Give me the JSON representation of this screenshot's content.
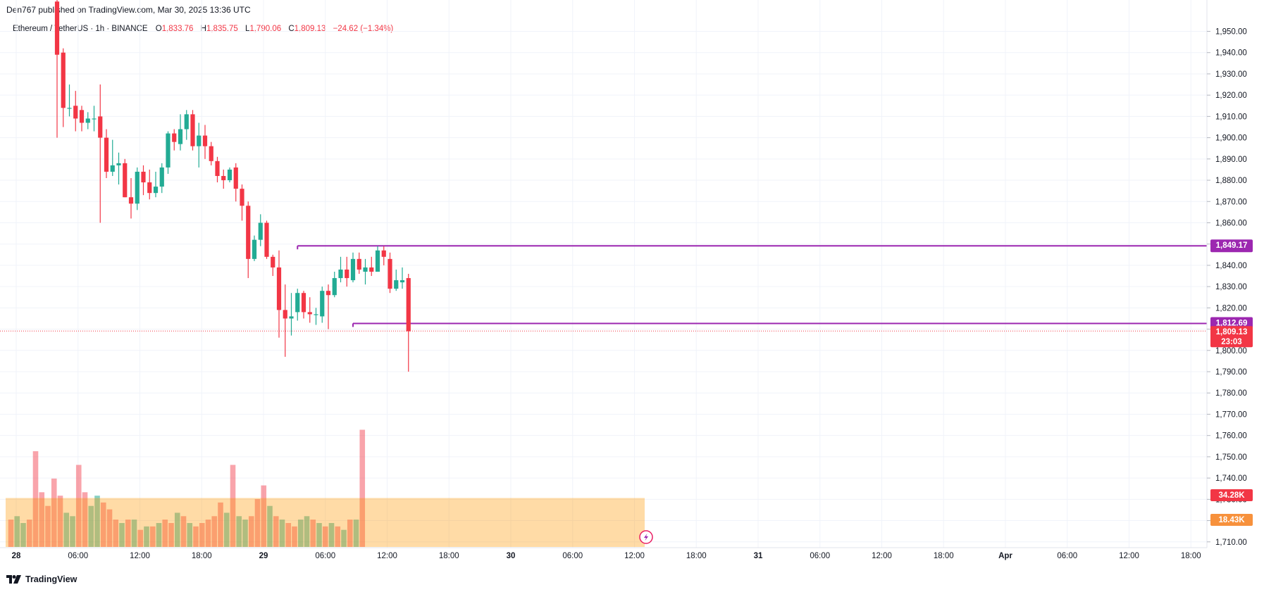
{
  "header": {
    "published": "Den767 published on TradingView.com, Mar 30, 2025 13:36 UTC"
  },
  "legend": {
    "symbol": "Ethereum / TetherUS · 1h · BINANCE",
    "open_label": "O",
    "open": "1,833.76",
    "high_label": "H",
    "high": "1,835.75",
    "low_label": "L",
    "low": "1,790.06",
    "close_label": "C",
    "close": "1,809.13",
    "change": "−24.62 (−1.34%)"
  },
  "footer": {
    "brand": "TradingView",
    "logo_icon": "tradingview-logo-icon"
  },
  "colors": {
    "up": "#22ab94",
    "down": "#f23645",
    "level": "#9c27b0",
    "volume_ma": "#ff9800"
  },
  "badges": {
    "level_high": "1,849.17",
    "level_low": "1,812.69",
    "last_price": "1,809.13",
    "countdown": "23:03",
    "volume": "34.28K",
    "volume_ma": "18.43K"
  },
  "chart_data": {
    "type": "candlestick",
    "symbol": "ETHUSDT",
    "interval": "1h",
    "ylim": [
      1705,
      1955
    ],
    "y_ticks": [
      "1,950.00",
      "1,940.00",
      "1,930.00",
      "1,920.00",
      "1,910.00",
      "1,900.00",
      "1,890.00",
      "1,880.00",
      "1,870.00",
      "1,860.00",
      "1,850.00",
      "1,840.00",
      "1,830.00",
      "1,820.00",
      "1,810.00",
      "1,800.00",
      "1,790.00",
      "1,780.00",
      "1,770.00",
      "1,760.00",
      "1,750.00",
      "1,740.00",
      "1,730.00",
      "1,720.00",
      "1,710.00"
    ],
    "x_ticks": [
      "28",
      "06:00",
      "12:00",
      "18:00",
      "29",
      "06:00",
      "12:00",
      "18:00",
      "30",
      "06:00",
      "12:00",
      "18:00",
      "31",
      "06:00",
      "12:00",
      "18:00",
      "Apr",
      "06:00",
      "12:00",
      "18:00"
    ],
    "candles": [
      {
        "o": 1964,
        "h": 1968,
        "l": 1900,
        "c": 1939
      },
      {
        "o": 1940,
        "h": 1942,
        "l": 1905,
        "c": 1914
      },
      {
        "o": 1914,
        "h": 1925,
        "l": 1910,
        "c": 1914
      },
      {
        "o": 1915,
        "h": 1922,
        "l": 1903,
        "c": 1909
      },
      {
        "o": 1913,
        "h": 1915,
        "l": 1903,
        "c": 1907
      },
      {
        "o": 1907,
        "h": 1912,
        "l": 1904,
        "c": 1909
      },
      {
        "o": 1909,
        "h": 1915,
        "l": 1903,
        "c": 1909
      },
      {
        "o": 1910,
        "h": 1925,
        "l": 1860,
        "c": 1900
      },
      {
        "o": 1900,
        "h": 1904,
        "l": 1881,
        "c": 1884
      },
      {
        "o": 1884,
        "h": 1899,
        "l": 1882,
        "c": 1887
      },
      {
        "o": 1887,
        "h": 1893,
        "l": 1878,
        "c": 1888
      },
      {
        "o": 1888,
        "h": 1890,
        "l": 1872,
        "c": 1872
      },
      {
        "o": 1872,
        "h": 1881,
        "l": 1862,
        "c": 1869
      },
      {
        "o": 1869,
        "h": 1886,
        "l": 1866,
        "c": 1884
      },
      {
        "o": 1884,
        "h": 1887,
        "l": 1873,
        "c": 1879
      },
      {
        "o": 1879,
        "h": 1885,
        "l": 1871,
        "c": 1874
      },
      {
        "o": 1874,
        "h": 1884,
        "l": 1872,
        "c": 1877
      },
      {
        "o": 1877,
        "h": 1888,
        "l": 1874,
        "c": 1886
      },
      {
        "o": 1886,
        "h": 1903,
        "l": 1883,
        "c": 1902
      },
      {
        "o": 1902,
        "h": 1904,
        "l": 1894,
        "c": 1898
      },
      {
        "o": 1897,
        "h": 1911,
        "l": 1894,
        "c": 1904
      },
      {
        "o": 1904,
        "h": 1913,
        "l": 1899,
        "c": 1911
      },
      {
        "o": 1911,
        "h": 1913,
        "l": 1894,
        "c": 1896
      },
      {
        "o": 1896,
        "h": 1907,
        "l": 1886,
        "c": 1901
      },
      {
        "o": 1901,
        "h": 1906,
        "l": 1890,
        "c": 1896
      },
      {
        "o": 1896,
        "h": 1898,
        "l": 1887,
        "c": 1889
      },
      {
        "o": 1889,
        "h": 1891,
        "l": 1879,
        "c": 1882
      },
      {
        "o": 1882,
        "h": 1885,
        "l": 1876,
        "c": 1880
      },
      {
        "o": 1880,
        "h": 1886,
        "l": 1879,
        "c": 1885
      },
      {
        "o": 1886,
        "h": 1888,
        "l": 1870,
        "c": 1876
      },
      {
        "o": 1876,
        "h": 1878,
        "l": 1861,
        "c": 1868
      },
      {
        "o": 1868,
        "h": 1870,
        "l": 1834,
        "c": 1843
      },
      {
        "o": 1843,
        "h": 1854,
        "l": 1842,
        "c": 1852
      },
      {
        "o": 1852,
        "h": 1864,
        "l": 1849,
        "c": 1860
      },
      {
        "o": 1860,
        "h": 1861,
        "l": 1843,
        "c": 1844
      },
      {
        "o": 1844,
        "h": 1845,
        "l": 1835,
        "c": 1839
      },
      {
        "o": 1839,
        "h": 1847,
        "l": 1806,
        "c": 1819
      },
      {
        "o": 1819,
        "h": 1831,
        "l": 1797,
        "c": 1815
      },
      {
        "o": 1815,
        "h": 1827,
        "l": 1807,
        "c": 1816
      },
      {
        "o": 1818,
        "h": 1829,
        "l": 1814,
        "c": 1827
      },
      {
        "o": 1827,
        "h": 1828,
        "l": 1815,
        "c": 1818
      },
      {
        "o": 1818,
        "h": 1825,
        "l": 1813,
        "c": 1817
      },
      {
        "o": 1817,
        "h": 1820,
        "l": 1812,
        "c": 1817
      },
      {
        "o": 1816,
        "h": 1830,
        "l": 1813,
        "c": 1828
      },
      {
        "o": 1828,
        "h": 1831,
        "l": 1810,
        "c": 1826
      },
      {
        "o": 1826,
        "h": 1837,
        "l": 1825,
        "c": 1834
      },
      {
        "o": 1834,
        "h": 1844,
        "l": 1832,
        "c": 1838
      },
      {
        "o": 1838,
        "h": 1844,
        "l": 1830,
        "c": 1834
      },
      {
        "o": 1833,
        "h": 1846,
        "l": 1832,
        "c": 1843
      },
      {
        "o": 1843,
        "h": 1846,
        "l": 1836,
        "c": 1838
      },
      {
        "o": 1837,
        "h": 1843,
        "l": 1831,
        "c": 1839
      },
      {
        "o": 1839,
        "h": 1844,
        "l": 1835,
        "c": 1837
      },
      {
        "o": 1837,
        "h": 1849,
        "l": 1837,
        "c": 1847
      },
      {
        "o": 1847,
        "h": 1849,
        "l": 1840,
        "c": 1844
      },
      {
        "o": 1843,
        "h": 1846,
        "l": 1827,
        "c": 1829
      },
      {
        "o": 1829,
        "h": 1838,
        "l": 1828,
        "c": 1833
      },
      {
        "o": 1832,
        "h": 1839,
        "l": 1829,
        "c": 1833
      },
      {
        "o": 1834,
        "h": 1836,
        "l": 1790,
        "c": 1809
      }
    ],
    "volume": [
      {
        "v": 8,
        "up": false
      },
      {
        "v": 9,
        "up": true
      },
      {
        "v": 7,
        "up": true
      },
      {
        "v": 8,
        "up": false
      },
      {
        "v": 28,
        "up": false
      },
      {
        "v": 16,
        "up": false
      },
      {
        "v": 12,
        "up": false
      },
      {
        "v": 20,
        "up": false
      },
      {
        "v": 15,
        "up": false
      },
      {
        "v": 10,
        "up": true
      },
      {
        "v": 9,
        "up": true
      },
      {
        "v": 24,
        "up": false
      },
      {
        "v": 16,
        "up": false
      },
      {
        "v": 12,
        "up": true
      },
      {
        "v": 15,
        "up": true
      },
      {
        "v": 13,
        "up": false
      },
      {
        "v": 11,
        "up": false
      },
      {
        "v": 8,
        "up": false
      },
      {
        "v": 7,
        "up": true
      },
      {
        "v": 8,
        "up": false
      },
      {
        "v": 8,
        "up": true
      },
      {
        "v": 5,
        "up": false
      },
      {
        "v": 6,
        "up": true
      },
      {
        "v": 6,
        "up": false
      },
      {
        "v": 7,
        "up": true
      },
      {
        "v": 8,
        "up": false
      },
      {
        "v": 7,
        "up": false
      },
      {
        "v": 10,
        "up": true
      },
      {
        "v": 9,
        "up": false
      },
      {
        "v": 7,
        "up": true
      },
      {
        "v": 6,
        "up": false
      },
      {
        "v": 7,
        "up": false
      },
      {
        "v": 8,
        "up": false
      },
      {
        "v": 9,
        "up": false
      },
      {
        "v": 13,
        "up": false
      },
      {
        "v": 10,
        "up": true
      },
      {
        "v": 24,
        "up": false
      },
      {
        "v": 9,
        "up": true
      },
      {
        "v": 8,
        "up": true
      },
      {
        "v": 9,
        "up": false
      },
      {
        "v": 14,
        "up": false
      },
      {
        "v": 18,
        "up": false
      },
      {
        "v": 12,
        "up": true
      },
      {
        "v": 9,
        "up": false
      },
      {
        "v": 8,
        "up": true
      },
      {
        "v": 7,
        "up": false
      },
      {
        "v": 6,
        "up": false
      },
      {
        "v": 8,
        "up": true
      },
      {
        "v": 9,
        "up": true
      },
      {
        "v": 8,
        "up": false
      },
      {
        "v": 7,
        "up": true
      },
      {
        "v": 6,
        "up": false
      },
      {
        "v": 7,
        "up": true
      },
      {
        "v": 6,
        "up": false
      },
      {
        "v": 5,
        "up": true
      },
      {
        "v": 8,
        "up": false
      },
      {
        "v": 8,
        "up": true
      },
      {
        "v": 34.28,
        "up": false
      }
    ],
    "levels": [
      {
        "price": 1849.17,
        "from_candle": 39
      },
      {
        "price": 1812.69,
        "from_candle": 48
      }
    ],
    "last_price": 1809.13,
    "volume_ma": 18.43,
    "grid": true
  }
}
